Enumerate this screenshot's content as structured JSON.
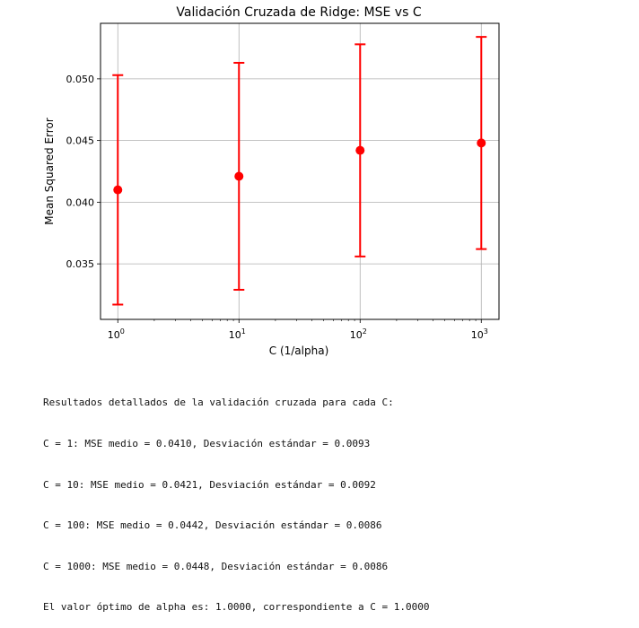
{
  "chart_data": {
    "type": "scatter",
    "title": "Validación Cruzada de Ridge: MSE vs C",
    "xlabel": "C (1/alpha)",
    "ylabel": "Mean Squared Error",
    "x_scale": "log",
    "xlim": [
      0.72,
      1400
    ],
    "ylim": [
      0.0305,
      0.0545
    ],
    "grid": true,
    "x_ticks": [
      {
        "value": 1,
        "base": "10",
        "exp": "0"
      },
      {
        "value": 10,
        "base": "10",
        "exp": "1"
      },
      {
        "value": 100,
        "base": "10",
        "exp": "2"
      },
      {
        "value": 1000,
        "base": "10",
        "exp": "3"
      }
    ],
    "y_ticks": [
      "0.035",
      "0.040",
      "0.045",
      "0.050"
    ],
    "series": [
      {
        "color": "#ff0000",
        "x": [
          1,
          10,
          100,
          1000
        ],
        "y": [
          0.041,
          0.0421,
          0.0442,
          0.0448
        ],
        "yerr": [
          0.0093,
          0.0092,
          0.0086,
          0.0086
        ]
      }
    ]
  },
  "console": {
    "lines": [
      "Resultados detallados de la validación cruzada para cada C:",
      "C = 1: MSE medio = 0.0410, Desviación estándar = 0.0093",
      "C = 10: MSE medio = 0.0421, Desviación estándar = 0.0092",
      "C = 100: MSE medio = 0.0442, Desviación estándar = 0.0086",
      "C = 1000: MSE medio = 0.0448, Desviación estándar = 0.0086",
      "El valor óptimo de alpha es: 1.0000, correspondiente a C = 1.0000"
    ]
  }
}
